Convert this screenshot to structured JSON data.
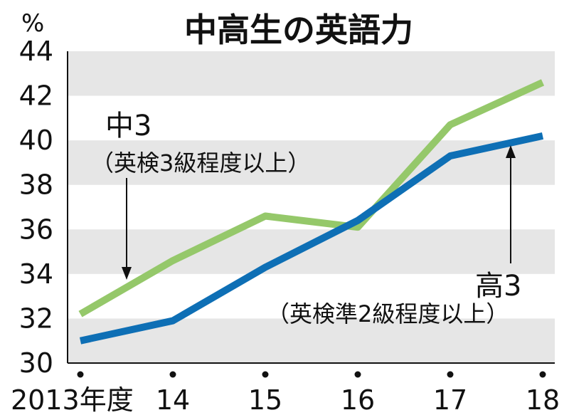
{
  "chart_data": {
    "type": "line",
    "title": "中高生の英語力",
    "y_unit": "%",
    "ylim": [
      30,
      44
    ],
    "y_ticks": [
      30,
      32,
      34,
      36,
      38,
      40,
      42,
      44
    ],
    "x": [
      "2013",
      "14",
      "15",
      "16",
      "17",
      "18"
    ],
    "x_labels": [
      "2013年度",
      "14",
      "15",
      "16",
      "17",
      "18"
    ],
    "grid": "alternating horizontal bands",
    "series": [
      {
        "name": "中3",
        "note": "（英検3級程度以上）",
        "color": "#95c86a",
        "values": [
          32.2,
          34.6,
          36.6,
          36.1,
          40.7,
          42.6
        ]
      },
      {
        "name": "高3",
        "note": "（英検準2級程度以上）",
        "color": "#0e6fb5",
        "values": [
          31.0,
          31.9,
          34.3,
          36.4,
          39.3,
          40.2
        ]
      }
    ]
  }
}
